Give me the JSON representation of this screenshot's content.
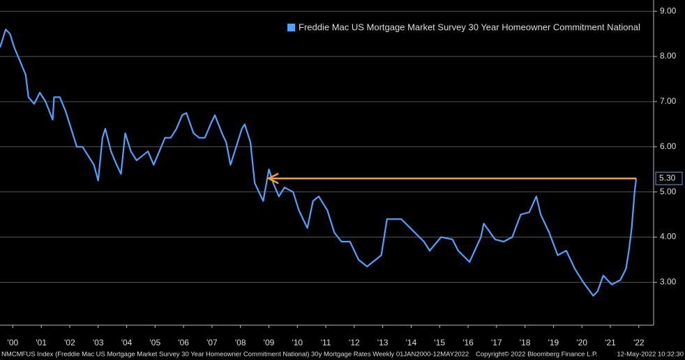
{
  "chart_data": {
    "type": "line",
    "legend": "Freddie Mac US Mortgage Market Survey 30 Year Homeowner Commitment National",
    "series": [
      {
        "name": "Freddie Mac US Mortgage Market Survey 30 Year Homeowner Commitment National",
        "color": "#4da3ff",
        "x": [
          2000.0,
          2000.1,
          2000.2,
          2000.35,
          2000.5,
          2000.7,
          2000.9,
          2001.0,
          2001.2,
          2001.4,
          2001.6,
          2001.85,
          2001.9,
          2002.1,
          2002.3,
          2002.5,
          2002.7,
          2002.9,
          2003.1,
          2003.3,
          2003.45,
          2003.6,
          2003.7,
          2003.9,
          2004.1,
          2004.25,
          2004.4,
          2004.6,
          2004.8,
          2005.0,
          2005.2,
          2005.4,
          2005.6,
          2005.8,
          2006.0,
          2006.2,
          2006.4,
          2006.55,
          2006.8,
          2007.0,
          2007.2,
          2007.4,
          2007.55,
          2007.8,
          2007.95,
          2008.1,
          2008.3,
          2008.5,
          2008.6,
          2008.8,
          2008.95,
          2009.1,
          2009.25,
          2009.45,
          2009.6,
          2009.8,
          2010.0,
          2010.3,
          2010.5,
          2010.8,
          2011.0,
          2011.2,
          2011.5,
          2011.75,
          2012.0,
          2012.3,
          2012.6,
          2012.9,
          2013.2,
          2013.4,
          2013.6,
          2013.9,
          2014.1,
          2014.5,
          2014.9,
          2015.1,
          2015.5,
          2015.9,
          2016.1,
          2016.5,
          2016.9,
          2017.0,
          2017.4,
          2017.7,
          2018.0,
          2018.3,
          2018.6,
          2018.85,
          2019.0,
          2019.3,
          2019.6,
          2019.9,
          2020.2,
          2020.5,
          2020.85,
          2021.0,
          2021.2,
          2021.5,
          2021.8,
          2022.0,
          2022.1,
          2022.2,
          2022.3,
          2022.36
        ],
        "values": [
          8.2,
          8.4,
          8.6,
          8.5,
          8.2,
          7.9,
          7.6,
          7.1,
          6.95,
          7.2,
          7.0,
          6.6,
          7.1,
          7.1,
          6.8,
          6.4,
          6.0,
          6.0,
          5.8,
          5.6,
          5.25,
          6.2,
          6.4,
          5.9,
          5.6,
          5.4,
          6.3,
          5.9,
          5.7,
          5.8,
          5.9,
          5.6,
          5.9,
          6.2,
          6.2,
          6.4,
          6.7,
          6.75,
          6.3,
          6.2,
          6.2,
          6.5,
          6.7,
          6.3,
          6.1,
          5.6,
          6.0,
          6.4,
          6.5,
          6.1,
          5.2,
          5.0,
          4.8,
          5.5,
          5.2,
          4.9,
          5.1,
          5.0,
          4.6,
          4.2,
          4.8,
          4.9,
          4.6,
          4.1,
          3.9,
          3.9,
          3.5,
          3.35,
          3.5,
          3.6,
          4.4,
          4.4,
          4.4,
          4.15,
          3.9,
          3.7,
          4.0,
          3.95,
          3.7,
          3.45,
          4.0,
          4.3,
          3.95,
          3.9,
          4.0,
          4.5,
          4.55,
          4.9,
          4.5,
          4.1,
          3.6,
          3.7,
          3.3,
          3.0,
          2.7,
          2.8,
          3.15,
          2.95,
          3.05,
          3.3,
          3.7,
          4.2,
          5.0,
          5.3
        ]
      }
    ],
    "annotation": {
      "value": 5.3,
      "label": "5.30",
      "from": 2022.36,
      "to": 2009.44,
      "color": "#ff9f1c"
    },
    "xlim": [
      2000,
      2022.97
    ],
    "xticks": [
      {
        "value": 2000.45,
        "label": "'00"
      },
      {
        "value": 2001.45,
        "label": "'01"
      },
      {
        "value": 2002.45,
        "label": "'02"
      },
      {
        "value": 2003.45,
        "label": "'03"
      },
      {
        "value": 2004.45,
        "label": "'04"
      },
      {
        "value": 2005.45,
        "label": "'05"
      },
      {
        "value": 2006.45,
        "label": "'06"
      },
      {
        "value": 2007.45,
        "label": "'07"
      },
      {
        "value": 2008.45,
        "label": "'08"
      },
      {
        "value": 2009.45,
        "label": "'09"
      },
      {
        "value": 2010.45,
        "label": "'10"
      },
      {
        "value": 2011.45,
        "label": "'11"
      },
      {
        "value": 2012.45,
        "label": "'12"
      },
      {
        "value": 2013.45,
        "label": "'13"
      },
      {
        "value": 2014.45,
        "label": "'14"
      },
      {
        "value": 2015.45,
        "label": "'15"
      },
      {
        "value": 2016.45,
        "label": "'16"
      },
      {
        "value": 2017.45,
        "label": "'17"
      },
      {
        "value": 2018.45,
        "label": "'18"
      },
      {
        "value": 2019.45,
        "label": "'19"
      },
      {
        "value": 2020.45,
        "label": "'20"
      },
      {
        "value": 2021.45,
        "label": "'21"
      },
      {
        "value": 2022.45,
        "label": "'22"
      }
    ],
    "ylim": [
      2.05,
      9.25
    ],
    "yticks": [
      {
        "value": 3,
        "label": "3.00"
      },
      {
        "value": 4,
        "label": "4.00"
      },
      {
        "value": 5,
        "label": "5.00"
      },
      {
        "value": 6,
        "label": "6.00"
      },
      {
        "value": 7,
        "label": "7.00"
      },
      {
        "value": 8,
        "label": "8.00"
      },
      {
        "value": 9,
        "label": "9.00"
      }
    ],
    "grid": true,
    "footer": {
      "left": "NMCMFUS Index (Freddie Mac US Mortgage Market Survey 30 Year Homeowner Commitment National) 30y Mortgage Rates  Weekly 01JAN2000-12MAY2022",
      "center": "Copyright© 2022 Bloomberg Finance L.P.",
      "right": "12-May-2022 10:32:30"
    }
  }
}
